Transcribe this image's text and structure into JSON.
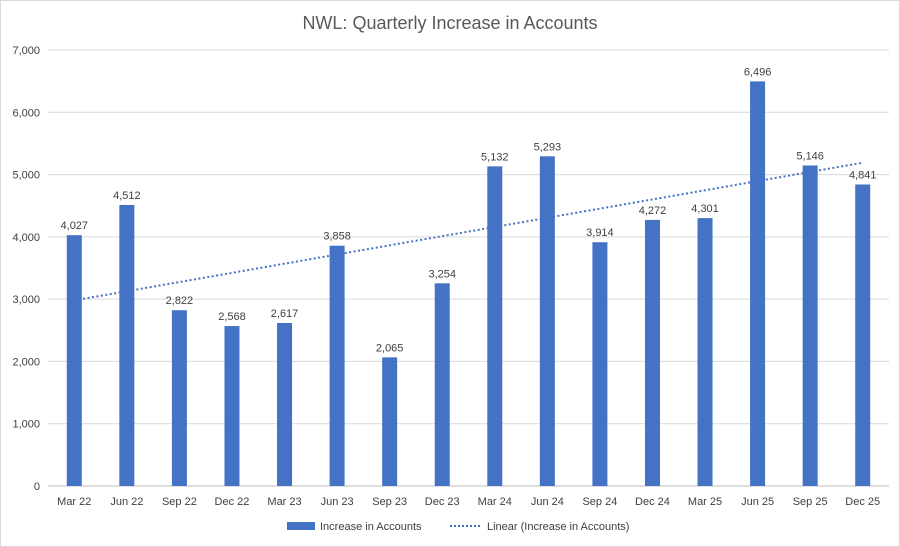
{
  "chart_data": {
    "type": "bar",
    "title": "NWL: Quarterly Increase in Accounts",
    "xlabel": "",
    "ylabel": "",
    "ylim": [
      0,
      7000
    ],
    "y_ticks": [
      0,
      1000,
      2000,
      3000,
      4000,
      5000,
      6000,
      7000
    ],
    "y_tick_labels": [
      "0",
      "1,000",
      "2,000",
      "3,000",
      "4,000",
      "5,000",
      "6,000",
      "7,000"
    ],
    "grid": true,
    "categories": [
      "Mar 22",
      "Jun 22",
      "Sep 22",
      "Dec 22",
      "Mar 23",
      "Jun 23",
      "Sep 23",
      "Dec 23",
      "Mar 24",
      "Jun 24",
      "Sep 24",
      "Dec 24",
      "Mar 25",
      "Jun 25",
      "Sep 25",
      "Dec 25"
    ],
    "series": [
      {
        "name": "Increase in Accounts",
        "color": "#4472C4",
        "values": [
          4027,
          4512,
          2822,
          2568,
          2617,
          3858,
          2065,
          3254,
          5132,
          5293,
          3914,
          4272,
          4301,
          6496,
          5146,
          4841
        ],
        "data_labels": [
          "4,027",
          "4,512",
          "2,822",
          "2,568",
          "2,617",
          "3,858",
          "2,065",
          "3,254",
          "5,132",
          "5,293",
          "3,914",
          "4,272",
          "4,301",
          "6,496",
          "5,146",
          "4,841"
        ]
      }
    ],
    "trendline": {
      "name": "Linear (Increase in Accounts)",
      "type": "linear",
      "color": "#4472C4",
      "start_value": 2980,
      "end_value": 5190
    },
    "legend": {
      "placement": "bottom",
      "entries": [
        "Increase in Accounts",
        "Linear (Increase in Accounts)"
      ]
    }
  }
}
